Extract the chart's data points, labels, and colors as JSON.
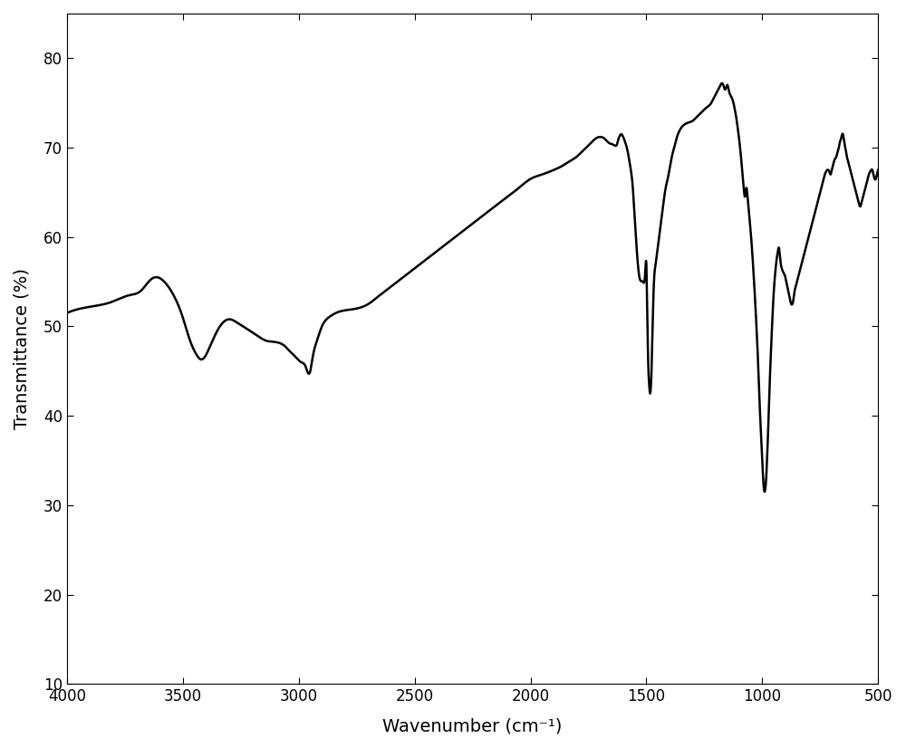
{
  "title": "",
  "xlabel": "Wavenumber (cm⁻¹)",
  "ylabel": "Transmittance (%)",
  "xlim": [
    4000,
    500
  ],
  "ylim": [
    10,
    85
  ],
  "yticks": [
    10,
    20,
    30,
    40,
    50,
    60,
    70,
    80
  ],
  "xticks": [
    4000,
    3500,
    3000,
    2500,
    2000,
    1500,
    1000,
    500
  ],
  "line_color": "#000000",
  "line_width": 1.8,
  "background_color": "#ffffff",
  "keypoints": [
    [
      4000,
      51.5
    ],
    [
      3900,
      52.2
    ],
    [
      3800,
      52.8
    ],
    [
      3730,
      53.5
    ],
    [
      3680,
      54.0
    ],
    [
      3640,
      55.2
    ],
    [
      3610,
      55.5
    ],
    [
      3580,
      55.0
    ],
    [
      3540,
      53.5
    ],
    [
      3500,
      51.0
    ],
    [
      3470,
      48.5
    ],
    [
      3440,
      46.8
    ],
    [
      3420,
      46.3
    ],
    [
      3400,
      46.8
    ],
    [
      3370,
      48.5
    ],
    [
      3340,
      50.0
    ],
    [
      3300,
      50.8
    ],
    [
      3270,
      50.5
    ],
    [
      3240,
      50.0
    ],
    [
      3210,
      49.5
    ],
    [
      3180,
      49.0
    ],
    [
      3150,
      48.5
    ],
    [
      3120,
      48.3
    ],
    [
      3090,
      48.2
    ],
    [
      3060,
      47.8
    ],
    [
      3030,
      47.0
    ],
    [
      3010,
      46.5
    ],
    [
      2990,
      46.0
    ],
    [
      2970,
      45.5
    ],
    [
      2960,
      44.8
    ],
    [
      2950,
      45.0
    ],
    [
      2940,
      46.5
    ],
    [
      2920,
      48.5
    ],
    [
      2900,
      50.0
    ],
    [
      2880,
      50.8
    ],
    [
      2860,
      51.2
    ],
    [
      2840,
      51.5
    ],
    [
      2800,
      51.8
    ],
    [
      2750,
      52.0
    ],
    [
      2700,
      52.5
    ],
    [
      2650,
      53.5
    ],
    [
      2600,
      54.5
    ],
    [
      2550,
      55.5
    ],
    [
      2500,
      56.5
    ],
    [
      2450,
      57.5
    ],
    [
      2400,
      58.5
    ],
    [
      2350,
      59.5
    ],
    [
      2300,
      60.5
    ],
    [
      2250,
      61.5
    ],
    [
      2200,
      62.5
    ],
    [
      2150,
      63.5
    ],
    [
      2100,
      64.5
    ],
    [
      2050,
      65.5
    ],
    [
      2000,
      66.5
    ],
    [
      1950,
      67.0
    ],
    [
      1900,
      67.5
    ],
    [
      1860,
      68.0
    ],
    [
      1830,
      68.5
    ],
    [
      1800,
      69.0
    ],
    [
      1780,
      69.5
    ],
    [
      1760,
      70.0
    ],
    [
      1740,
      70.5
    ],
    [
      1720,
      71.0
    ],
    [
      1700,
      71.2
    ],
    [
      1680,
      71.0
    ],
    [
      1660,
      70.5
    ],
    [
      1640,
      70.3
    ],
    [
      1625,
      70.5
    ],
    [
      1620,
      71.0
    ],
    [
      1615,
      71.3
    ],
    [
      1610,
      71.5
    ],
    [
      1600,
      71.2
    ],
    [
      1590,
      70.5
    ],
    [
      1580,
      69.5
    ],
    [
      1570,
      68.0
    ],
    [
      1560,
      66.0
    ],
    [
      1545,
      60.0
    ],
    [
      1530,
      55.5
    ],
    [
      1515,
      55.0
    ],
    [
      1505,
      56.0
    ],
    [
      1500,
      57.0
    ],
    [
      1498,
      55.0
    ],
    [
      1493,
      47.0
    ],
    [
      1488,
      43.5
    ],
    [
      1484,
      42.5
    ],
    [
      1480,
      43.5
    ],
    [
      1475,
      47.5
    ],
    [
      1470,
      53.0
    ],
    [
      1460,
      57.0
    ],
    [
      1445,
      60.0
    ],
    [
      1430,
      63.0
    ],
    [
      1420,
      65.0
    ],
    [
      1400,
      67.5
    ],
    [
      1390,
      69.0
    ],
    [
      1380,
      70.0
    ],
    [
      1370,
      71.0
    ],
    [
      1355,
      72.0
    ],
    [
      1340,
      72.5
    ],
    [
      1320,
      72.8
    ],
    [
      1300,
      73.0
    ],
    [
      1280,
      73.5
    ],
    [
      1260,
      74.0
    ],
    [
      1240,
      74.5
    ],
    [
      1220,
      75.0
    ],
    [
      1210,
      75.5
    ],
    [
      1200,
      76.0
    ],
    [
      1190,
      76.5
    ],
    [
      1180,
      77.0
    ],
    [
      1175,
      77.2
    ],
    [
      1168,
      77.0
    ],
    [
      1160,
      76.5
    ],
    [
      1155,
      76.8
    ],
    [
      1150,
      77.0
    ],
    [
      1145,
      76.5
    ],
    [
      1140,
      76.0
    ],
    [
      1130,
      75.5
    ],
    [
      1120,
      74.5
    ],
    [
      1110,
      73.0
    ],
    [
      1100,
      71.0
    ],
    [
      1090,
      68.5
    ],
    [
      1080,
      65.5
    ],
    [
      1075,
      64.5
    ],
    [
      1068,
      65.5
    ],
    [
      1062,
      64.0
    ],
    [
      1055,
      62.0
    ],
    [
      1048,
      60.0
    ],
    [
      1040,
      57.0
    ],
    [
      1032,
      53.5
    ],
    [
      1025,
      50.0
    ],
    [
      1018,
      46.0
    ],
    [
      1012,
      42.0
    ],
    [
      1006,
      38.0
    ],
    [
      1000,
      35.0
    ],
    [
      995,
      32.5
    ],
    [
      990,
      31.5
    ],
    [
      986,
      32.0
    ],
    [
      982,
      33.5
    ],
    [
      978,
      36.0
    ],
    [
      973,
      39.5
    ],
    [
      968,
      43.5
    ],
    [
      962,
      47.5
    ],
    [
      956,
      51.0
    ],
    [
      950,
      54.0
    ],
    [
      944,
      56.0
    ],
    [
      938,
      57.5
    ],
    [
      932,
      58.5
    ],
    [
      928,
      58.8
    ],
    [
      924,
      58.0
    ],
    [
      920,
      57.0
    ],
    [
      916,
      56.5
    ],
    [
      912,
      56.2
    ],
    [
      908,
      56.0
    ],
    [
      904,
      55.8
    ],
    [
      900,
      55.5
    ],
    [
      896,
      55.0
    ],
    [
      892,
      54.5
    ],
    [
      888,
      54.0
    ],
    [
      884,
      53.5
    ],
    [
      880,
      53.0
    ],
    [
      875,
      52.5
    ],
    [
      870,
      52.5
    ],
    [
      865,
      53.0
    ],
    [
      860,
      54.0
    ],
    [
      855,
      54.5
    ],
    [
      850,
      55.0
    ],
    [
      845,
      55.5
    ],
    [
      840,
      56.0
    ],
    [
      835,
      56.5
    ],
    [
      830,
      57.0
    ],
    [
      825,
      57.5
    ],
    [
      820,
      58.0
    ],
    [
      815,
      58.5
    ],
    [
      810,
      59.0
    ],
    [
      805,
      59.5
    ],
    [
      800,
      60.0
    ],
    [
      795,
      60.5
    ],
    [
      790,
      61.0
    ],
    [
      785,
      61.5
    ],
    [
      780,
      62.0
    ],
    [
      775,
      62.5
    ],
    [
      770,
      63.0
    ],
    [
      765,
      63.5
    ],
    [
      760,
      64.0
    ],
    [
      755,
      64.5
    ],
    [
      750,
      65.0
    ],
    [
      745,
      65.5
    ],
    [
      740,
      66.0
    ],
    [
      735,
      66.5
    ],
    [
      730,
      67.0
    ],
    [
      725,
      67.3
    ],
    [
      720,
      67.5
    ],
    [
      715,
      67.5
    ],
    [
      710,
      67.3
    ],
    [
      705,
      67.0
    ],
    [
      700,
      67.5
    ],
    [
      695,
      68.0
    ],
    [
      690,
      68.5
    ],
    [
      685,
      68.8
    ],
    [
      680,
      69.0
    ],
    [
      678,
      69.2
    ],
    [
      675,
      69.5
    ],
    [
      672,
      69.8
    ],
    [
      670,
      70.0
    ],
    [
      668,
      70.2
    ],
    [
      666,
      70.5
    ],
    [
      663,
      70.8
    ],
    [
      660,
      71.0
    ],
    [
      658,
      71.2
    ],
    [
      655,
      71.5
    ],
    [
      652,
      71.5
    ],
    [
      650,
      71.3
    ],
    [
      648,
      71.0
    ],
    [
      645,
      70.5
    ],
    [
      642,
      70.0
    ],
    [
      638,
      69.5
    ],
    [
      635,
      69.0
    ],
    [
      630,
      68.5
    ],
    [
      625,
      68.0
    ],
    [
      620,
      67.5
    ],
    [
      615,
      67.0
    ],
    [
      610,
      66.5
    ],
    [
      605,
      66.0
    ],
    [
      600,
      65.5
    ],
    [
      595,
      65.0
    ],
    [
      590,
      64.5
    ],
    [
      585,
      64.0
    ],
    [
      580,
      63.5
    ],
    [
      575,
      63.5
    ],
    [
      570,
      64.0
    ],
    [
      565,
      64.5
    ],
    [
      560,
      65.0
    ],
    [
      555,
      65.5
    ],
    [
      550,
      66.0
    ],
    [
      545,
      66.5
    ],
    [
      540,
      67.0
    ],
    [
      535,
      67.3
    ],
    [
      530,
      67.5
    ],
    [
      525,
      67.5
    ],
    [
      520,
      67.0
    ],
    [
      515,
      66.5
    ],
    [
      510,
      66.5
    ],
    [
      505,
      67.0
    ],
    [
      500,
      67.5
    ]
  ]
}
